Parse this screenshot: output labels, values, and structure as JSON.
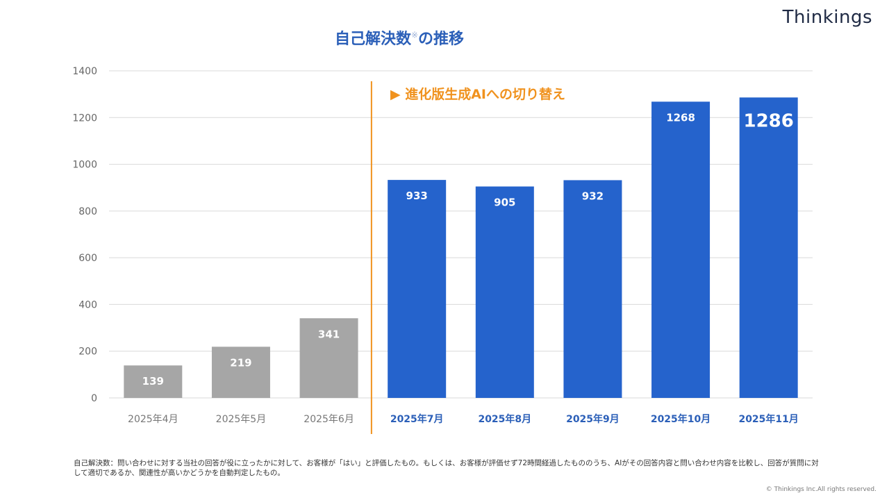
{
  "logo": "Thinkings",
  "footnote": "自己解決数：問い合わせに対する当社の回答が役に立ったかに対して、お客様が「はい」と評価したもの。もしくは、お客様が評価せず72時間経過したもののうち、AIがその回答内容と問い合わせ内容を比較し、回答が質問に対して適切であるか、関連性が高いかどうかを自動判定したもの。",
  "copyright": "© Thinkings Inc.All rights reserved.",
  "colors": {
    "title": "#2b5fb8",
    "blue_bar": "#2563cc",
    "gray_bar": "#a6a6a6",
    "annotation": "#f0921e"
  },
  "chart_data": {
    "type": "bar",
    "title": "自己解決数",
    "title_mark": "※",
    "title_suffix": "の推移",
    "categories": [
      "2025年4月",
      "2025年5月",
      "2025年6月",
      "2025年7月",
      "2025年8月",
      "2025年9月",
      "2025年10月",
      "2025年11月"
    ],
    "values": [
      139,
      219,
      341,
      933,
      905,
      932,
      1268,
      1286
    ],
    "bar_colors": [
      "gray",
      "gray",
      "gray",
      "blue",
      "blue",
      "blue",
      "blue",
      "blue"
    ],
    "ylim": [
      0,
      1400
    ],
    "yticks": [
      0,
      200,
      400,
      600,
      800,
      1000,
      1200,
      1400
    ],
    "grid": true,
    "annotation": {
      "text": "▶ 進化版生成AIへの切り替え",
      "between": [
        "2025年6月",
        "2025年7月"
      ]
    },
    "highlight_last": true
  }
}
